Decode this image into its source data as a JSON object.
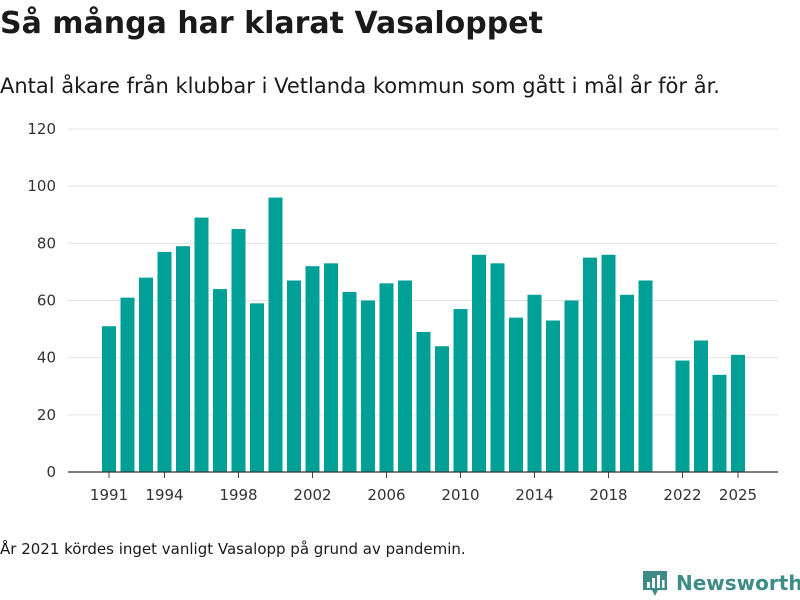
{
  "header": {
    "title": "Så många har klarat Vasaloppet",
    "subtitle": "Antal åkare från klubbar i Vetlanda kommun som gått i mål år för år."
  },
  "footnote": "År 2021 kördes inget vanligt Vasalopp på grund av pandemin.",
  "brand": {
    "name": "Newsworthy",
    "icon": "newsworthy-logo-icon",
    "color": "#3d8c88"
  },
  "chart_data": {
    "type": "bar",
    "title": "",
    "xlabel": "",
    "ylabel": "",
    "ylim": [
      0,
      120
    ],
    "grid": true,
    "y_ticks": [
      0,
      20,
      40,
      60,
      80,
      100,
      120
    ],
    "x_ticks": [
      1991,
      1994,
      1998,
      2002,
      2006,
      2010,
      2014,
      2018,
      2022,
      2025
    ],
    "bar_color": "#00a097",
    "series": [
      {
        "x": [
          1991,
          1992,
          1993,
          1994,
          1995,
          1996,
          1997,
          1998,
          1999,
          2000,
          2001,
          2002,
          2003,
          2004,
          2005,
          2006,
          2007,
          2008,
          2009,
          2010,
          2011,
          2012,
          2013,
          2014,
          2015,
          2016,
          2017,
          2018,
          2019,
          2020,
          2022,
          2023,
          2024,
          2025
        ],
        "values": [
          51,
          61,
          68,
          77,
          79,
          89,
          64,
          85,
          59,
          96,
          67,
          72,
          73,
          63,
          60,
          66,
          67,
          49,
          44,
          57,
          76,
          73,
          54,
          62,
          53,
          60,
          75,
          76,
          62,
          67,
          39,
          46,
          34,
          41
        ]
      }
    ]
  }
}
